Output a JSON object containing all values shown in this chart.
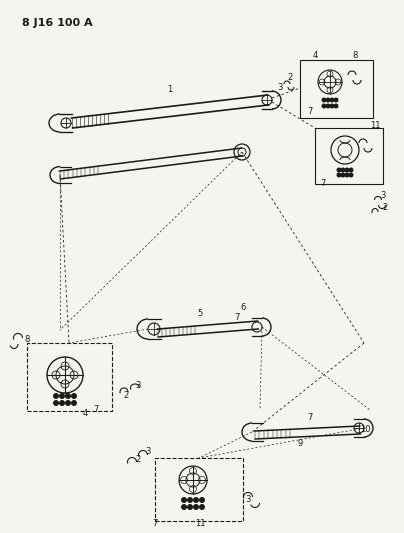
{
  "title": "8 J16 100 A",
  "bg_color": "#f5f5f0",
  "line_color": "#1a1a1a",
  "title_fontsize": 8,
  "label_fontsize": 6,
  "fig_width": 4.04,
  "fig_height": 5.33,
  "dpi": 100
}
